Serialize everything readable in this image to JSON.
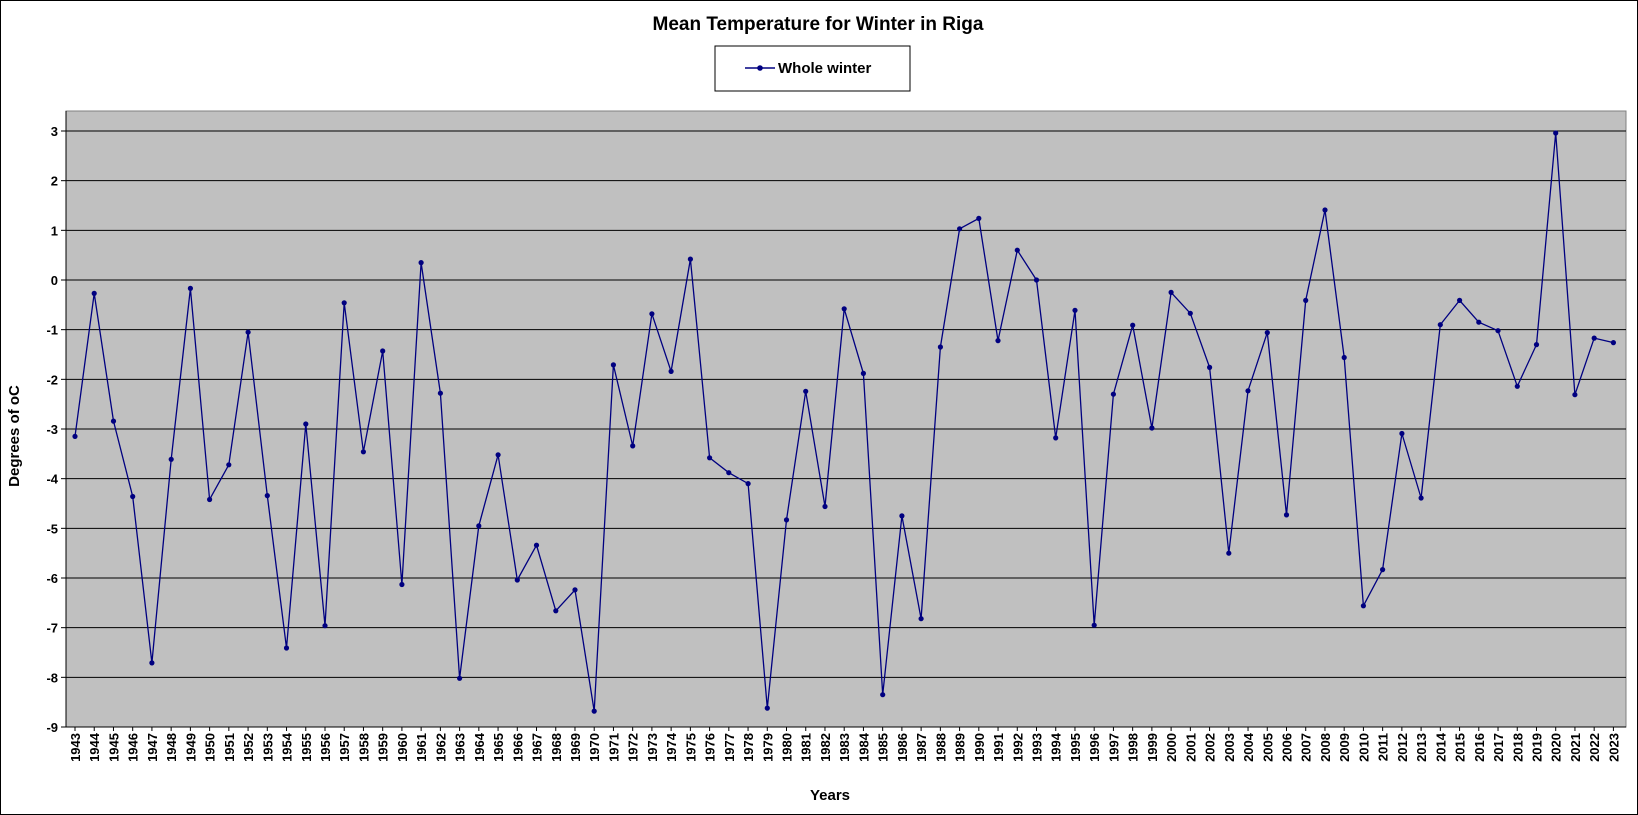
{
  "chart_data": {
    "type": "line",
    "title": "Mean Temperature for Winter in Riga",
    "xlabel": "Years",
    "ylabel": "Degrees of  oC",
    "ylim": [
      -9,
      3
    ],
    "y_ticks": [
      "3",
      "2",
      "1",
      "0",
      "-1",
      "-2",
      "-3",
      "-4",
      "-5",
      "-6",
      "-7",
      "-8",
      "-9"
    ],
    "grid": true,
    "legend": "top-center",
    "colors": {
      "line": "#000080",
      "plot_bg": "#c0c0c0",
      "grid": "#000000"
    },
    "categories": [
      "1943",
      "1944",
      "1945",
      "1946",
      "1947",
      "1948",
      "1949",
      "1950",
      "1951",
      "1952",
      "1953",
      "1954",
      "1955",
      "1956",
      "1957",
      "1958",
      "1959",
      "1960",
      "1961",
      "1962",
      "1963",
      "1964",
      "1965",
      "1966",
      "1967",
      "1968",
      "1969",
      "1970",
      "1971",
      "1972",
      "1973",
      "1974",
      "1975",
      "1976",
      "1977",
      "1978",
      "1979",
      "1980",
      "1981",
      "1982",
      "1983",
      "1984",
      "1985",
      "1986",
      "1987",
      "1988",
      "1989",
      "1990",
      "1991",
      "1992",
      "1993",
      "1994",
      "1995",
      "1996",
      "1997",
      "1998",
      "1999",
      "2000",
      "2001",
      "2002",
      "2003",
      "2004",
      "2005",
      "2006",
      "2007",
      "2008",
      "2009",
      "2010",
      "2011",
      "2012",
      "2013",
      "2014",
      "2015",
      "2016",
      "2017",
      "2018",
      "2019",
      "2020",
      "2021",
      "2022",
      "2023"
    ],
    "series": [
      {
        "name": "Whole winter",
        "values": [
          -3.15,
          -0.27,
          -2.84,
          -4.36,
          -7.71,
          -3.61,
          -0.17,
          -4.42,
          -3.72,
          -1.05,
          -4.34,
          -7.41,
          -2.9,
          -6.96,
          -0.46,
          -3.46,
          -1.43,
          -6.13,
          0.35,
          -2.28,
          -8.02,
          -4.95,
          -3.52,
          -6.04,
          -5.34,
          -6.66,
          -6.24,
          -8.68,
          -1.71,
          -3.34,
          -0.68,
          -1.84,
          0.42,
          -3.58,
          -3.88,
          -4.1,
          -8.62,
          -4.83,
          -2.24,
          -4.56,
          -0.58,
          -1.88,
          -8.35,
          -4.75,
          -6.82,
          -1.35,
          1.03,
          1.24,
          -1.22,
          0.6,
          0.0,
          -3.18,
          -0.61,
          -6.95,
          -2.3,
          -0.91,
          -2.98,
          -0.25,
          -0.67,
          -1.76,
          -5.5,
          -2.23,
          -1.06,
          -4.73,
          -0.41,
          1.41,
          -1.56,
          -6.56,
          -5.83,
          -3.09,
          -4.39,
          -0.9,
          -0.41,
          -0.85,
          -1.02,
          -2.14,
          -1.3,
          2.96,
          -2.31,
          -1.17,
          -1.26
        ]
      }
    ]
  }
}
